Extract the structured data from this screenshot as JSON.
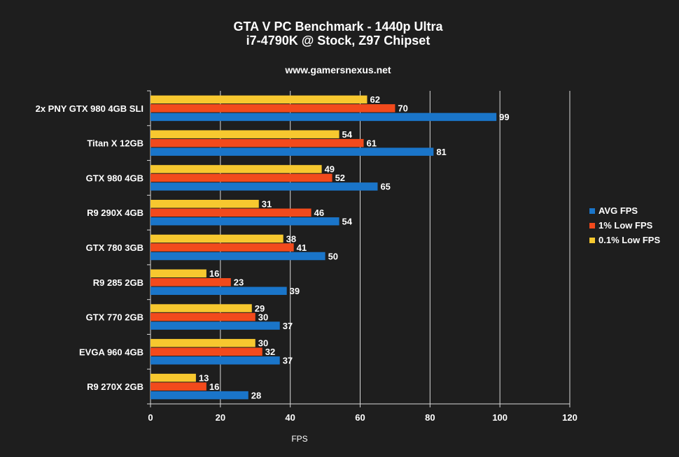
{
  "chart_data": {
    "type": "bar",
    "orientation": "horizontal",
    "title": "GTA V PC Benchmark - 1440p Ultra",
    "subtitle": "i7-4790K @ Stock, Z97 Chipset",
    "source": "www.gamersnexus.net",
    "xlabel": "FPS",
    "ylabel": "",
    "xlim": [
      0,
      120
    ],
    "xticks": [
      0,
      20,
      40,
      60,
      80,
      100,
      120
    ],
    "grid": true,
    "legend_position": "right",
    "categories": [
      "2x PNY GTX 980 4GB SLI",
      "Titan X 12GB",
      "GTX 980 4GB",
      "R9 290X 4GB",
      "GTX 780 3GB",
      "R9 285 2GB",
      "GTX 770 2GB",
      "EVGA 960 4GB",
      "R9 270X 2GB"
    ],
    "series": [
      {
        "name": "AVG FPS",
        "color": "#1a75c9",
        "values": [
          99,
          81,
          65,
          54,
          50,
          39,
          37,
          37,
          28
        ]
      },
      {
        "name": "1% Low FPS",
        "color": "#f24a1c",
        "values": [
          70,
          61,
          52,
          46,
          41,
          23,
          30,
          32,
          16
        ]
      },
      {
        "name": "0.1% Low FPS",
        "color": "#f7c82f",
        "values": [
          62,
          54,
          49,
          31,
          38,
          16,
          29,
          30,
          13
        ]
      }
    ]
  }
}
